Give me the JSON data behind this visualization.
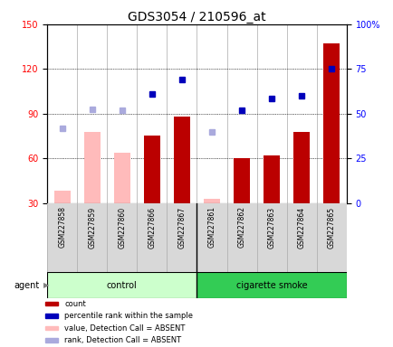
{
  "title": "GDS3054 / 210596_at",
  "samples": [
    "GSM227858",
    "GSM227859",
    "GSM227860",
    "GSM227866",
    "GSM227867",
    "GSM227861",
    "GSM227862",
    "GSM227863",
    "GSM227864",
    "GSM227865"
  ],
  "bar_values": [
    null,
    null,
    null,
    75,
    88,
    null,
    60,
    62,
    78,
    137
  ],
  "bar_absent_values": [
    38,
    78,
    64,
    null,
    null,
    33,
    null,
    null,
    null,
    null
  ],
  "rank_present": [
    null,
    null,
    null,
    103,
    113,
    null,
    92,
    100,
    102,
    120
  ],
  "rank_absent": [
    80,
    93,
    92,
    null,
    null,
    78,
    null,
    null,
    null,
    null
  ],
  "ylim_left": [
    30,
    150
  ],
  "yticks_left": [
    30,
    60,
    90,
    120,
    150
  ],
  "ytick_labels_left": [
    "30",
    "60",
    "90",
    "120",
    "150"
  ],
  "yticks_right": [
    0,
    25,
    50,
    75,
    100
  ],
  "ytick_labels_right": [
    "0",
    "25",
    "50",
    "75",
    "100%"
  ],
  "num_control": 5,
  "num_smoke": 5,
  "bar_color_present": "#bb0000",
  "bar_color_absent": "#ffbbbb",
  "rank_color_present": "#0000bb",
  "rank_color_absent": "#aaaadd",
  "control_bg_light": "#ccffcc",
  "smoke_bg_dark": "#33cc55",
  "agent_label": "agent",
  "control_label": "control",
  "smoke_label": "cigarette smoke",
  "legend_data": [
    {
      "color": "#bb0000",
      "label": "count",
      "marker": "square"
    },
    {
      "color": "#0000bb",
      "label": "percentile rank within the sample",
      "marker": "square"
    },
    {
      "color": "#ffbbbb",
      "label": "value, Detection Call = ABSENT",
      "marker": "square"
    },
    {
      "color": "#aaaadd",
      "label": "rank, Detection Call = ABSENT",
      "marker": "square"
    }
  ],
  "title_fontsize": 10,
  "tick_fontsize": 7,
  "label_fontsize": 7,
  "bar_width": 0.55
}
